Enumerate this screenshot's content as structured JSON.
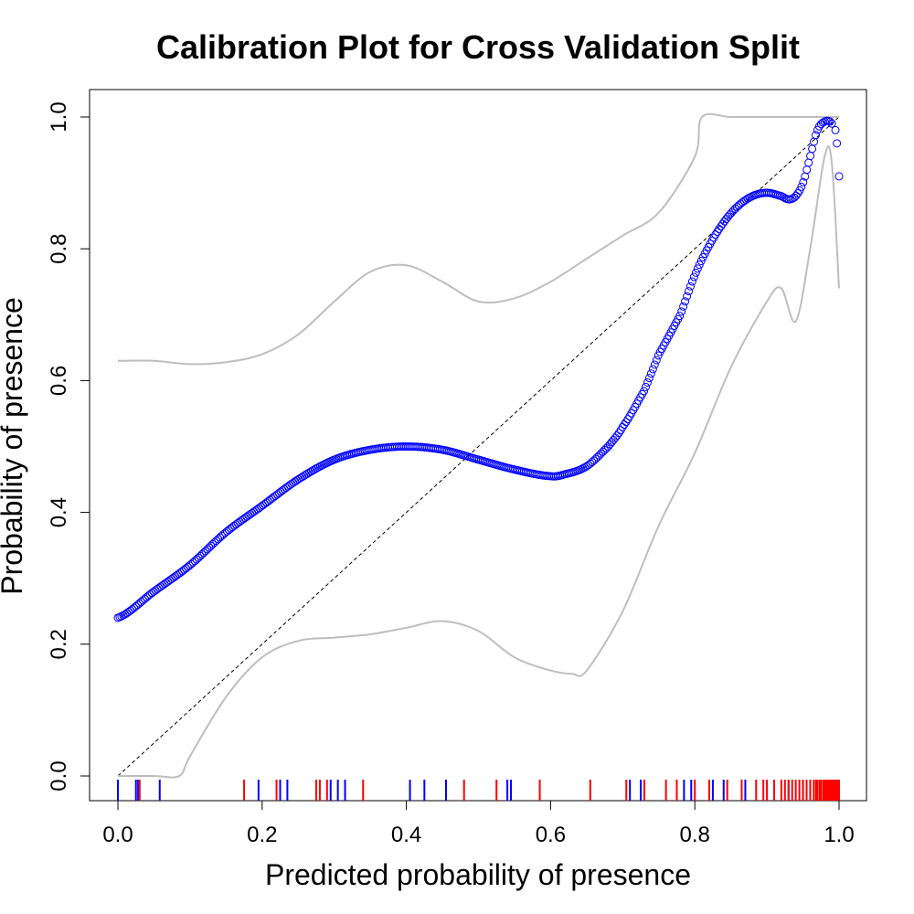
{
  "chart_data": {
    "type": "scatter",
    "title": "Calibration Plot for Cross Validation Split",
    "xlabel": "Predicted probability of presence",
    "ylabel": "Probability of presence",
    "xlim": [
      0,
      1
    ],
    "ylim": [
      0,
      1
    ],
    "x_ticks": [
      0.0,
      0.2,
      0.4,
      0.6,
      0.8,
      1.0
    ],
    "y_ticks": [
      0.0,
      0.2,
      0.4,
      0.6,
      0.8,
      1.0
    ],
    "x_tick_labels": [
      "0.0",
      "0.2",
      "0.4",
      "0.6",
      "0.8",
      "1.0"
    ],
    "y_tick_labels": [
      "0.0",
      "0.2",
      "0.4",
      "0.6",
      "0.8",
      "1.0"
    ],
    "grid": false,
    "colors": {
      "calibration_points": "#0000ff",
      "confidence_band": "#bebebe",
      "reference_line": "#000000",
      "rug_absence": "#0000ff",
      "rug_presence": "#ff0000"
    },
    "calibration_curve": {
      "x": [
        0.0,
        0.05,
        0.1,
        0.15,
        0.2,
        0.25,
        0.3,
        0.35,
        0.4,
        0.45,
        0.5,
        0.55,
        0.6,
        0.62,
        0.65,
        0.68,
        0.7,
        0.73,
        0.75,
        0.78,
        0.8,
        0.82,
        0.84,
        0.86,
        0.88,
        0.9,
        0.92,
        0.93,
        0.94,
        0.95,
        0.96,
        0.97,
        0.98,
        0.99,
        0.995,
        1.0
      ],
      "y": [
        0.24,
        0.28,
        0.32,
        0.37,
        0.41,
        0.45,
        0.48,
        0.495,
        0.5,
        0.495,
        0.48,
        0.465,
        0.455,
        0.458,
        0.47,
        0.5,
        0.53,
        0.585,
        0.64,
        0.7,
        0.76,
        0.805,
        0.84,
        0.865,
        0.88,
        0.885,
        0.88,
        0.875,
        0.88,
        0.9,
        0.94,
        0.98,
        0.993,
        0.99,
        0.96,
        0.91
      ]
    },
    "upper_band": {
      "x": [
        0.0,
        0.05,
        0.1,
        0.15,
        0.2,
        0.25,
        0.3,
        0.35,
        0.4,
        0.45,
        0.5,
        0.55,
        0.6,
        0.65,
        0.7,
        0.75,
        0.8,
        0.81,
        0.85,
        0.9,
        0.95,
        0.99,
        1.0
      ],
      "y": [
        0.63,
        0.63,
        0.625,
        0.628,
        0.64,
        0.67,
        0.72,
        0.765,
        0.775,
        0.75,
        0.72,
        0.725,
        0.75,
        0.785,
        0.82,
        0.855,
        0.94,
        1.0,
        1.0,
        1.0,
        1.0,
        1.0,
        1.0
      ]
    },
    "lower_band": {
      "x": [
        0.0,
        0.05,
        0.085,
        0.1,
        0.15,
        0.2,
        0.25,
        0.3,
        0.35,
        0.4,
        0.45,
        0.5,
        0.55,
        0.6,
        0.63,
        0.65,
        0.7,
        0.75,
        0.8,
        0.85,
        0.9,
        0.92,
        0.94,
        0.96,
        0.98,
        0.99,
        1.0
      ],
      "y": [
        0.0,
        0.0,
        0.0,
        0.03,
        0.12,
        0.18,
        0.205,
        0.21,
        0.215,
        0.225,
        0.235,
        0.22,
        0.18,
        0.16,
        0.155,
        0.16,
        0.25,
        0.38,
        0.49,
        0.62,
        0.72,
        0.74,
        0.69,
        0.8,
        0.94,
        0.93,
        0.74
      ]
    },
    "rug_absence": [
      0.0,
      0.025,
      0.028,
      0.03,
      0.058,
      0.195,
      0.225,
      0.235,
      0.295,
      0.305,
      0.315,
      0.405,
      0.425,
      0.455,
      0.54,
      0.545,
      0.71,
      0.725,
      0.785,
      0.795,
      0.825,
      0.84,
      0.87,
      0.91,
      0.93,
      0.95
    ],
    "rug_presence": [
      0.03,
      0.175,
      0.22,
      0.275,
      0.28,
      0.29,
      0.34,
      0.48,
      0.525,
      0.585,
      0.655,
      0.705,
      0.73,
      0.76,
      0.775,
      0.8,
      0.82,
      0.845,
      0.865,
      0.885,
      0.895,
      0.9,
      0.91,
      0.92,
      0.925,
      0.93,
      0.935,
      0.94,
      0.945,
      0.95,
      0.955,
      0.96,
      0.965,
      0.968,
      0.97,
      0.973,
      0.975,
      0.978,
      0.98,
      0.982,
      0.984,
      0.986,
      0.988,
      0.99,
      0.992,
      0.994,
      0.996,
      0.998,
      1.0
    ]
  }
}
